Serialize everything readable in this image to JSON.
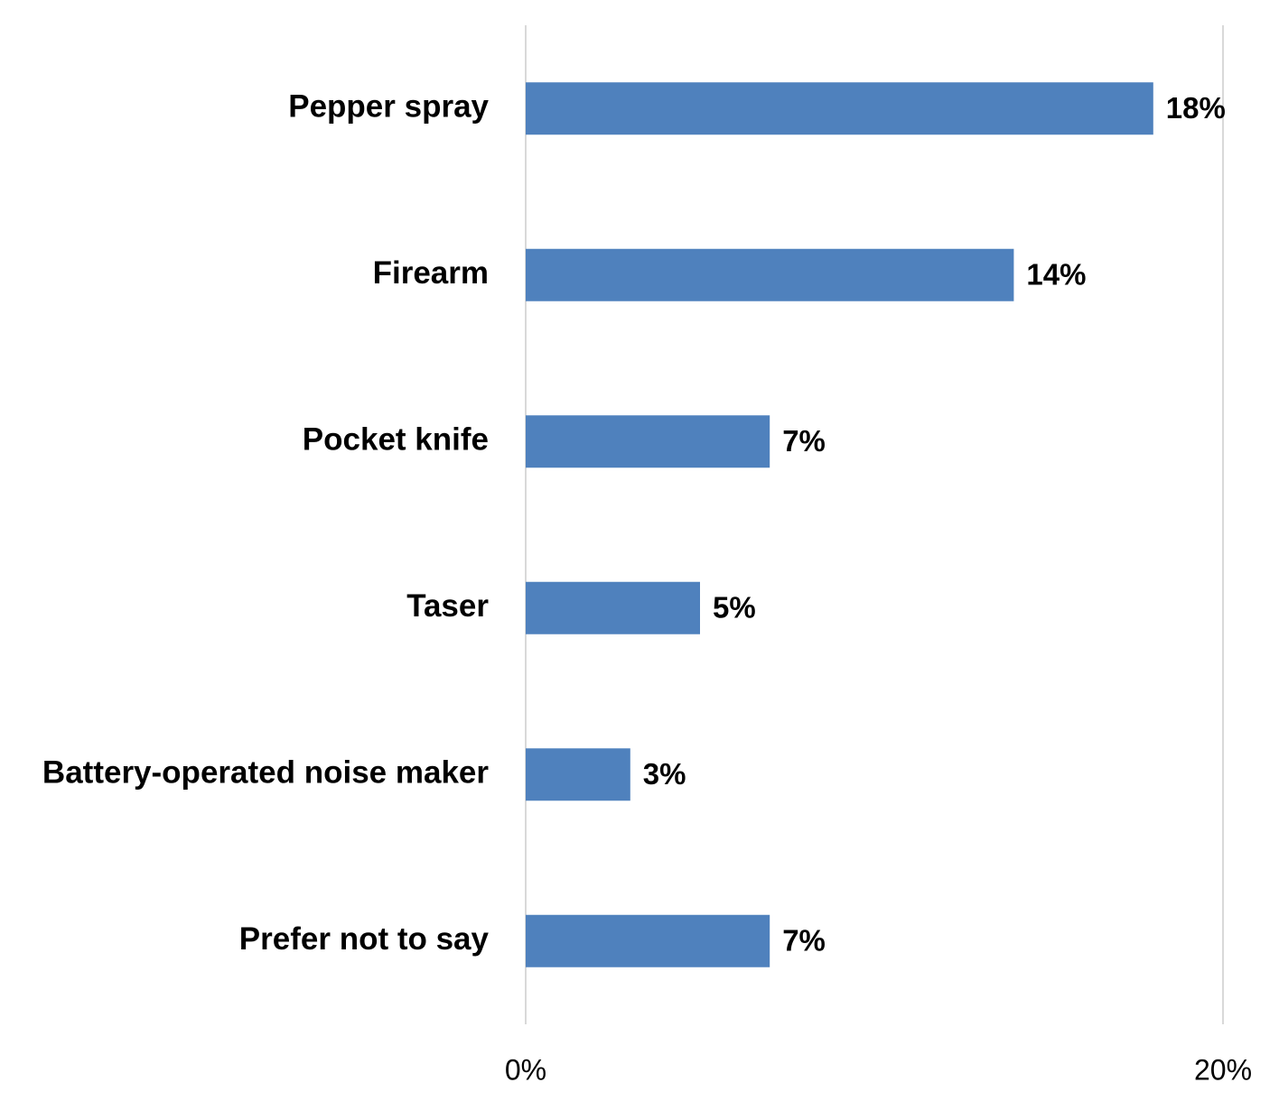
{
  "chart_data": {
    "type": "barh",
    "categories": [
      "Pepper spray",
      "Firearm",
      "Pocket knife",
      "Taser",
      "Battery-operated noise maker",
      "Prefer not to say"
    ],
    "values": [
      18,
      14,
      7,
      5,
      3,
      7
    ],
    "value_labels": [
      "18%",
      "14%",
      "7%",
      "5%",
      "3%",
      "7%"
    ],
    "color": "#4f81bd",
    "xlim": [
      0,
      20
    ],
    "xticks": [
      {
        "value": 0,
        "label": "0%"
      },
      {
        "value": 20,
        "label": "20%"
      }
    ],
    "grid": true
  }
}
